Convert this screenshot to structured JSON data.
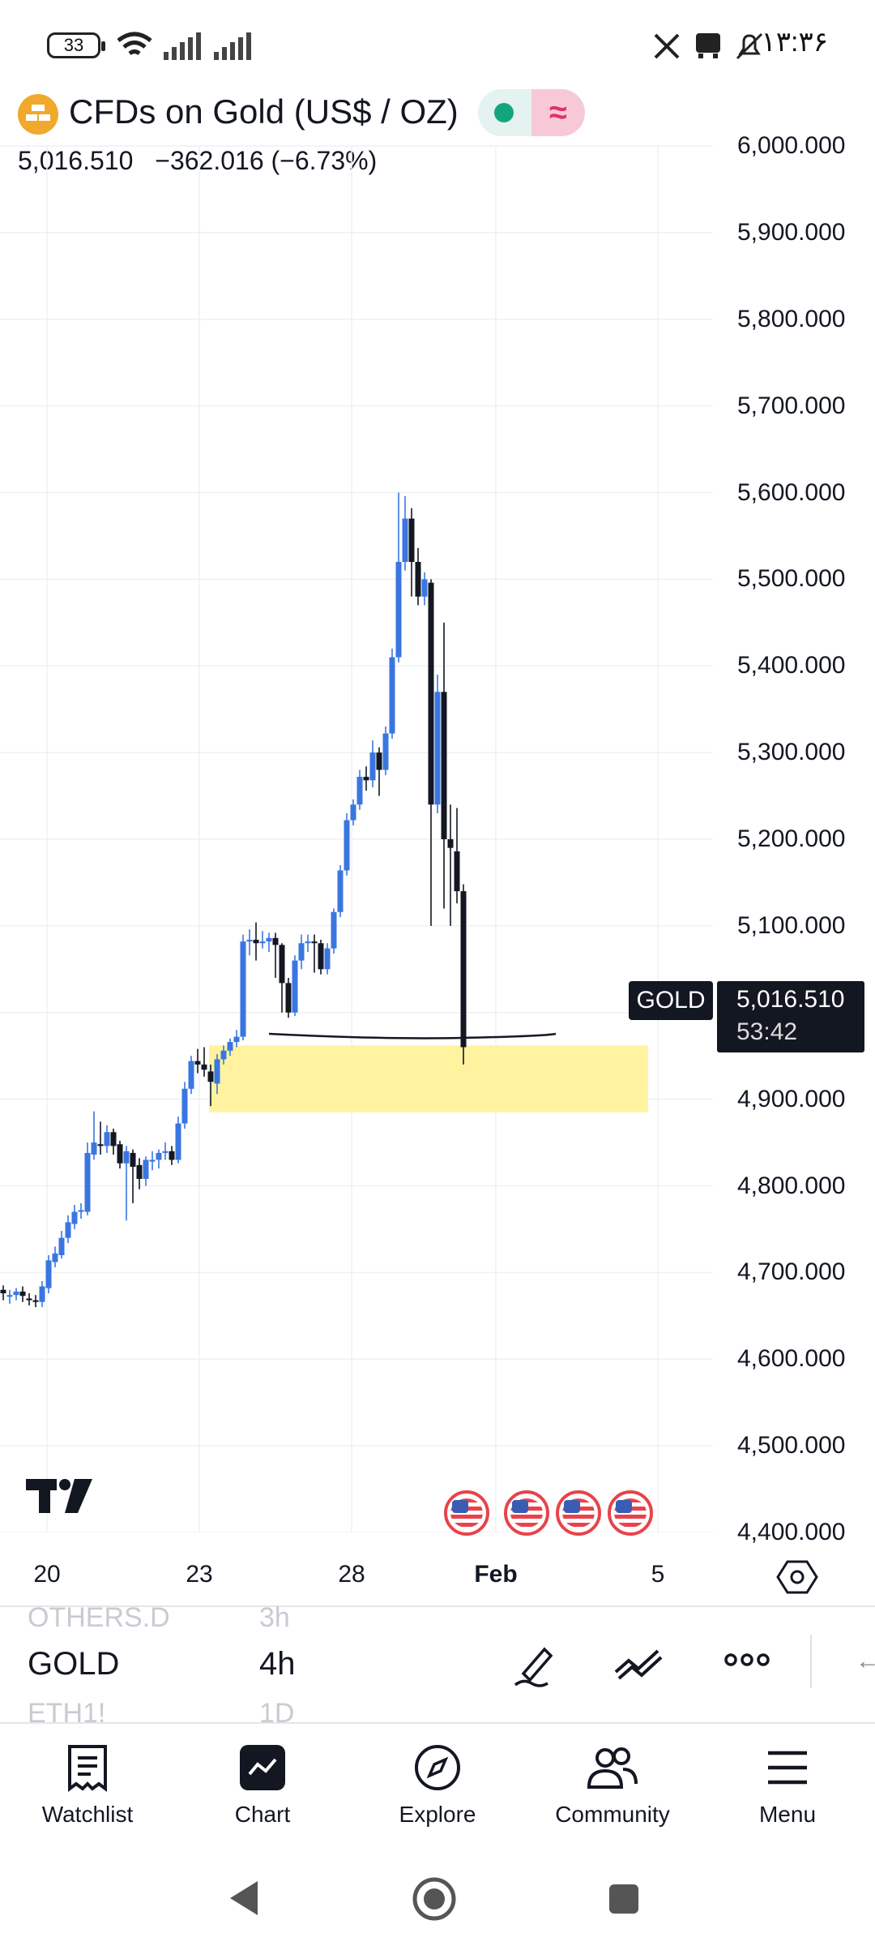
{
  "status_bar": {
    "battery": "33",
    "time": "۱۳:۳۶"
  },
  "header": {
    "title": "CFDs on Gold (US$ / OZ)",
    "price": "5,016.510",
    "change": "−362.016 (−6.73%)"
  },
  "chart": {
    "y_axis_labels": [
      "6,000.000",
      "5,900.000",
      "5,800.000",
      "5,700.000",
      "5,600.000",
      "5,500.000",
      "5,400.000",
      "5,300.000",
      "5,200.000",
      "5,100.000",
      "4,900.000",
      "4,800.000",
      "4,700.000",
      "4,600.000",
      "4,500.000",
      "4,400.000"
    ],
    "x_axis_labels": [
      "20",
      "23",
      "28",
      "Feb",
      "5"
    ],
    "symbol_tag": "GOLD",
    "last_price": "5,016.510",
    "countdown": "53:42",
    "colors": {
      "up": "#3a76e0",
      "down": "#131722",
      "zone": "#fff3a0"
    }
  },
  "chart_data": {
    "type": "candlestick",
    "x": [
      "20",
      "23",
      "28",
      "Feb",
      "5"
    ],
    "ylim": [
      4400,
      6000
    ],
    "annotations": [
      {
        "type": "rectangle",
        "y_range": [
          4885,
          4962
        ],
        "color": "#fff3a0"
      },
      {
        "type": "horizontal-line",
        "y": 4975
      }
    ]
  },
  "toolbar": {
    "prev_symbol": "OTHERS.D",
    "prev_interval": "3h",
    "symbol": "GOLD",
    "interval": "4h",
    "next_symbol": "ETH1!",
    "next_interval": "1D"
  },
  "nav": {
    "watchlist": "Watchlist",
    "chart": "Chart",
    "explore": "Explore",
    "community": "Community",
    "menu": "Menu"
  }
}
